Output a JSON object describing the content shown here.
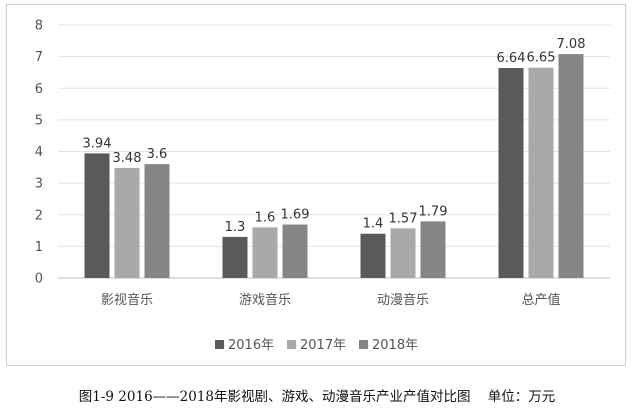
{
  "caption": "图1-9 2016——2018年影视剧、游戏、动漫音乐产业产值对比图    单位：万元",
  "chart_data": {
    "type": "bar",
    "categories": [
      "影视音乐",
      "游戏音乐",
      "动漫音乐",
      "总产值"
    ],
    "series": [
      {
        "name": "2016年",
        "values": [
          3.94,
          1.3,
          1.4,
          6.64
        ],
        "labels": [
          "3.94",
          "1.3",
          "1.4",
          "6.64"
        ],
        "color": "#5a5a5a"
      },
      {
        "name": "2017年",
        "values": [
          3.48,
          1.6,
          1.57,
          6.65
        ],
        "labels": [
          "3.48",
          "1.6",
          "1.57",
          "6.65"
        ],
        "color": "#a9a9a9"
      },
      {
        "name": "2018年",
        "values": [
          3.6,
          1.69,
          1.79,
          7.08
        ],
        "labels": [
          "3.6",
          "1.69",
          "1.79",
          "7.08"
        ],
        "color": "#858585"
      }
    ],
    "yticks": [
      0,
      1,
      2,
      3,
      4,
      5,
      6,
      7,
      8
    ],
    "ylim": [
      0,
      8
    ],
    "grid": true,
    "legend_position": "bottom"
  }
}
